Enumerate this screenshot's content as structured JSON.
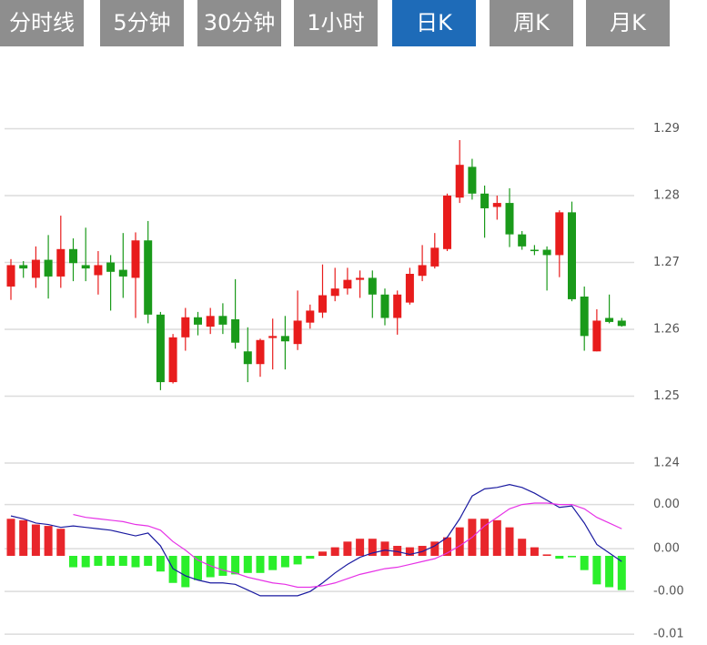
{
  "tabs": [
    {
      "label": "分时线",
      "active": false
    },
    {
      "label": "5分钟",
      "active": false
    },
    {
      "label": "30分钟",
      "active": false
    },
    {
      "label": "1小时",
      "active": false
    },
    {
      "label": "日K",
      "active": true
    },
    {
      "label": "周K",
      "active": false
    },
    {
      "label": "月K",
      "active": false
    }
  ],
  "chart_data": [
    {
      "type": "candlestick",
      "up_color": "#e81c1c",
      "down_color": "#1a9a1a",
      "grid": true,
      "open": [
        1.2664,
        1.2696,
        1.2677,
        1.2704,
        1.2679,
        1.272,
        1.2696,
        1.2681,
        1.27,
        1.2689,
        1.2677,
        1.2733,
        1.2622,
        1.2521,
        1.2588,
        1.2618,
        1.2604,
        1.262,
        1.2615,
        1.2567,
        1.2548,
        1.2587,
        1.259,
        1.2578,
        1.261,
        1.2625,
        1.265,
        1.2661,
        1.2674,
        1.2677,
        1.2652,
        1.2617,
        1.264,
        1.268,
        1.2694,
        1.272,
        1.2797,
        1.2843,
        1.2803,
        1.2783,
        1.2789,
        1.2742,
        1.2719,
        1.2719,
        1.2711,
        1.2775,
        1.2649,
        1.2567,
        1.2617,
        1.2613
      ],
      "close": [
        1.2696,
        1.2691,
        1.2704,
        1.2679,
        1.272,
        1.2699,
        1.2691,
        1.2696,
        1.2686,
        1.2679,
        1.2733,
        1.2622,
        1.2521,
        1.2588,
        1.2618,
        1.2607,
        1.262,
        1.2607,
        1.258,
        1.2548,
        1.2584,
        1.259,
        1.2582,
        1.2613,
        1.2628,
        1.2651,
        1.2661,
        1.2674,
        1.2677,
        1.2652,
        1.2617,
        1.2652,
        1.2683,
        1.2696,
        1.2722,
        1.28,
        1.2846,
        1.2803,
        1.2781,
        1.2789,
        1.2742,
        1.2724,
        1.2717,
        1.2711,
        1.2775,
        1.2645,
        1.259,
        1.2613,
        1.2611,
        1.2605
      ],
      "high": [
        1.2705,
        1.2702,
        1.2724,
        1.2741,
        1.277,
        1.2736,
        1.2752,
        1.2717,
        1.2711,
        1.2744,
        1.2745,
        1.2762,
        1.2626,
        1.2593,
        1.2632,
        1.2626,
        1.2632,
        1.2639,
        1.2675,
        1.2603,
        1.2586,
        1.2616,
        1.262,
        1.2658,
        1.2637,
        1.2697,
        1.2692,
        1.2692,
        1.2688,
        1.2688,
        1.2661,
        1.2658,
        1.2692,
        1.2726,
        1.2744,
        1.2803,
        1.2883,
        1.2855,
        1.2815,
        1.28,
        1.2811,
        1.2747,
        1.2726,
        1.2724,
        1.2778,
        1.2791,
        1.2664,
        1.263,
        1.2652,
        1.2617
      ],
      "low": [
        1.2644,
        1.2677,
        1.2662,
        1.2646,
        1.2662,
        1.2672,
        1.2672,
        1.2652,
        1.2628,
        1.2647,
        1.2617,
        1.2609,
        1.2509,
        1.2519,
        1.2568,
        1.2591,
        1.2593,
        1.2593,
        1.2571,
        1.2521,
        1.2529,
        1.254,
        1.254,
        1.2569,
        1.2601,
        1.2617,
        1.2642,
        1.2652,
        1.2647,
        1.2617,
        1.2606,
        1.2592,
        1.2637,
        1.2672,
        1.2691,
        1.2717,
        1.2789,
        1.2794,
        1.2737,
        1.2764,
        1.2723,
        1.2719,
        1.2711,
        1.2658,
        1.2678,
        1.2642,
        1.2568,
        1.2567,
        1.2609,
        1.2604
      ],
      "ylim": [
        1.24,
        1.3
      ],
      "yticks": [
        1.29,
        1.28,
        1.27,
        1.26,
        1.25,
        1.24
      ]
    },
    {
      "type": "macd",
      "grid": true,
      "histogram": {
        "up_color": "#e8262b",
        "down_color": "#2bef2b",
        "values": [
          0.0026,
          0.0025,
          0.0022,
          0.0021,
          0.0019,
          -0.0008,
          -0.0008,
          -0.0007,
          -0.0007,
          -0.0007,
          -0.0008,
          -0.0007,
          -0.0011,
          -0.0019,
          -0.0022,
          -0.0017,
          -0.0015,
          -0.0014,
          -0.0013,
          -0.0012,
          -0.0012,
          -0.001,
          -0.0008,
          -0.0006,
          -0.0002,
          0.0003,
          0.0006,
          0.001,
          0.0012,
          0.0012,
          0.001,
          0.0007,
          0.0006,
          0.0007,
          0.001,
          0.0013,
          0.002,
          0.0026,
          0.0026,
          0.0025,
          0.002,
          0.0012,
          0.0006,
          0.0001,
          -0.0002,
          -0.0001,
          -0.001,
          -0.002,
          -0.0022,
          -0.0024
        ]
      },
      "series": [
        {
          "color": "#1a1aa0",
          "values": [
            0.0028,
            0.0026,
            0.0023,
            0.0022,
            0.002,
            0.0021,
            0.002,
            0.0019,
            0.0018,
            0.0016,
            0.0014,
            0.0016,
            0.0007,
            -0.0009,
            -0.0014,
            -0.0017,
            -0.0019,
            -0.0019,
            -0.002,
            -0.0024,
            -0.0028,
            -0.0028,
            -0.0028,
            -0.0028,
            -0.0025,
            -0.0019,
            -0.0012,
            -0.0006,
            -0.0001,
            0.0002,
            0.0004,
            0.0003,
            0.0001,
            0.0003,
            0.0007,
            0.0013,
            0.0026,
            0.0042,
            0.0047,
            0.0048,
            0.005,
            0.0048,
            0.0044,
            0.0039,
            0.0034,
            0.0035,
            0.0023,
            0.0008,
            0.0002,
            -0.0004
          ]
        },
        {
          "color": "#e632e6",
          "values": [
            null,
            null,
            null,
            null,
            null,
            0.0029,
            0.0027,
            0.0026,
            0.0025,
            0.0024,
            0.0022,
            0.0021,
            0.0018,
            0.001,
            0.0004,
            -0.0003,
            -0.0007,
            -0.001,
            -0.0012,
            -0.0015,
            -0.0017,
            -0.0019,
            -0.002,
            -0.0022,
            -0.0022,
            -0.0021,
            -0.0019,
            -0.0016,
            -0.0013,
            -0.0011,
            -0.0009,
            -0.0008,
            -0.0006,
            -0.0004,
            -0.0002,
            0.0002,
            0.0007,
            0.0013,
            0.0021,
            0.0027,
            0.0033,
            0.0036,
            0.0037,
            0.0037,
            0.0036,
            0.0036,
            0.0033,
            0.0027,
            0.0023,
            0.0019
          ]
        }
      ],
      "ylim": [
        -0.006,
        0.006
      ],
      "yticks": [
        {
          "value": 0.0036,
          "label": "0.00"
        },
        {
          "value": 0.0005,
          "label": "0.00"
        },
        {
          "value": -0.0025,
          "label": "-0.00"
        },
        {
          "value": -0.0055,
          "label": "-0.01"
        }
      ]
    }
  ]
}
